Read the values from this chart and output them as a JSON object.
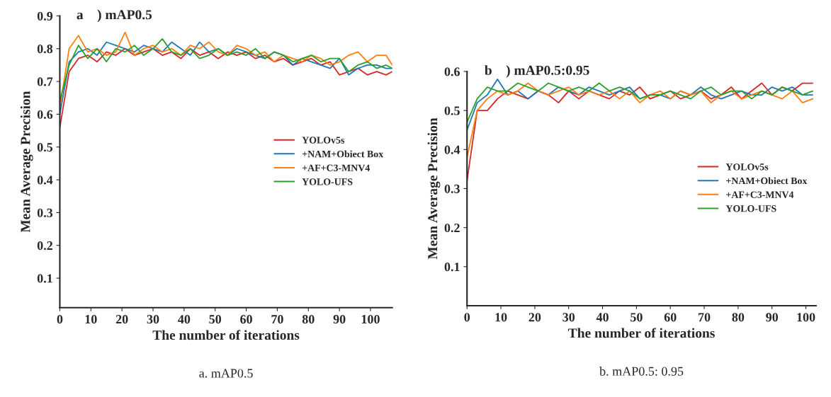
{
  "chart_data": [
    {
      "type": "line",
      "title": "a ) mAP0.5",
      "xlabel": "The number of iterations",
      "ylabel": "Mean Average Precision",
      "annotations": [
        "a. mAP0.5"
      ],
      "x": [
        0,
        3,
        6,
        9,
        12,
        15,
        18,
        21,
        24,
        27,
        30,
        33,
        36,
        39,
        42,
        45,
        48,
        51,
        54,
        57,
        60,
        63,
        66,
        69,
        72,
        75,
        78,
        81,
        84,
        87,
        90,
        93,
        96,
        99,
        102,
        105,
        107
      ],
      "xlim": [
        0,
        107
      ],
      "xticks": [
        0,
        10,
        20,
        30,
        40,
        50,
        60,
        70,
        80,
        90,
        100
      ],
      "ylim": [
        0.01,
        0.9
      ],
      "yticks": [
        0.1,
        0.2,
        0.3,
        0.4,
        0.5,
        0.6,
        0.7,
        0.8,
        0.9
      ],
      "legend": "center right",
      "grid": false,
      "series": [
        {
          "name": "YOLOv5s",
          "color": "#d62728",
          "values": [
            0.56,
            0.73,
            0.77,
            0.78,
            0.76,
            0.79,
            0.78,
            0.8,
            0.78,
            0.79,
            0.8,
            0.78,
            0.79,
            0.77,
            0.8,
            0.78,
            0.79,
            0.77,
            0.79,
            0.78,
            0.79,
            0.77,
            0.78,
            0.76,
            0.77,
            0.75,
            0.76,
            0.77,
            0.75,
            0.76,
            0.72,
            0.73,
            0.74,
            0.72,
            0.73,
            0.72,
            0.73
          ]
        },
        {
          "name": "+NAM+Obiect Box",
          "color": "#1f77b4",
          "values": [
            0.6,
            0.76,
            0.79,
            0.8,
            0.78,
            0.82,
            0.81,
            0.8,
            0.79,
            0.81,
            0.8,
            0.79,
            0.82,
            0.8,
            0.78,
            0.82,
            0.79,
            0.8,
            0.78,
            0.8,
            0.79,
            0.78,
            0.77,
            0.79,
            0.78,
            0.75,
            0.77,
            0.76,
            0.75,
            0.74,
            0.77,
            0.72,
            0.74,
            0.75,
            0.75,
            0.74,
            0.74
          ]
        },
        {
          "name": "+AF+C3-MNV4",
          "color": "#ff7f0e",
          "values": [
            0.62,
            0.8,
            0.84,
            0.79,
            0.8,
            0.78,
            0.79,
            0.85,
            0.78,
            0.8,
            0.81,
            0.79,
            0.8,
            0.78,
            0.81,
            0.8,
            0.82,
            0.79,
            0.78,
            0.81,
            0.8,
            0.78,
            0.79,
            0.76,
            0.78,
            0.77,
            0.76,
            0.78,
            0.77,
            0.75,
            0.76,
            0.78,
            0.79,
            0.76,
            0.78,
            0.78,
            0.75
          ]
        },
        {
          "name": "YOLO-UFS",
          "color": "#2ca02c",
          "values": [
            0.64,
            0.75,
            0.81,
            0.77,
            0.8,
            0.76,
            0.8,
            0.79,
            0.81,
            0.78,
            0.8,
            0.83,
            0.79,
            0.78,
            0.8,
            0.77,
            0.78,
            0.8,
            0.78,
            0.79,
            0.78,
            0.8,
            0.77,
            0.79,
            0.78,
            0.76,
            0.77,
            0.78,
            0.76,
            0.77,
            0.77,
            0.73,
            0.75,
            0.76,
            0.74,
            0.75,
            0.74
          ]
        }
      ]
    },
    {
      "type": "line",
      "title": "b ) mAP0.5:0.95",
      "xlabel": "The number of iterations",
      "ylabel": "Mean Average Precision",
      "annotations": [
        "b. mAP0.5: 0.95"
      ],
      "x": [
        0,
        3,
        6,
        9,
        12,
        15,
        18,
        21,
        24,
        27,
        30,
        33,
        36,
        39,
        42,
        45,
        48,
        51,
        54,
        57,
        60,
        63,
        66,
        69,
        72,
        75,
        78,
        81,
        84,
        87,
        90,
        93,
        96,
        99,
        102
      ],
      "xlim": [
        0,
        103
      ],
      "xticks": [
        0,
        10,
        20,
        30,
        40,
        50,
        60,
        70,
        80,
        90,
        100
      ],
      "ylim": [
        0,
        0.6
      ],
      "yticks": [
        0.1,
        0.2,
        0.3,
        0.4,
        0.5,
        0.6
      ],
      "legend": "right",
      "grid": false,
      "series": [
        {
          "name": "YOLOv5s",
          "color": "#d62728",
          "values": [
            0.32,
            0.5,
            0.5,
            0.53,
            0.55,
            0.54,
            0.53,
            0.55,
            0.54,
            0.52,
            0.55,
            0.53,
            0.55,
            0.54,
            0.53,
            0.55,
            0.54,
            0.56,
            0.53,
            0.54,
            0.55,
            0.53,
            0.54,
            0.55,
            0.53,
            0.54,
            0.56,
            0.53,
            0.55,
            0.57,
            0.54,
            0.56,
            0.55,
            0.57,
            0.57
          ]
        },
        {
          "name": "+NAM+Obiect Box",
          "color": "#1f77b4",
          "values": [
            0.45,
            0.52,
            0.54,
            0.58,
            0.54,
            0.55,
            0.53,
            0.55,
            0.54,
            0.56,
            0.55,
            0.54,
            0.56,
            0.55,
            0.54,
            0.55,
            0.56,
            0.53,
            0.54,
            0.54,
            0.53,
            0.55,
            0.54,
            0.56,
            0.54,
            0.53,
            0.54,
            0.55,
            0.54,
            0.54,
            0.56,
            0.55,
            0.56,
            0.54,
            0.54
          ]
        },
        {
          "name": "+AF+C3-MNV4",
          "color": "#ff7f0e",
          "values": [
            0.38,
            0.5,
            0.53,
            0.55,
            0.54,
            0.55,
            0.57,
            0.55,
            0.54,
            0.55,
            0.56,
            0.54,
            0.55,
            0.54,
            0.55,
            0.53,
            0.55,
            0.52,
            0.54,
            0.55,
            0.53,
            0.55,
            0.54,
            0.55,
            0.52,
            0.54,
            0.55,
            0.53,
            0.54,
            0.55,
            0.54,
            0.53,
            0.55,
            0.52,
            0.53
          ]
        },
        {
          "name": "YOLO-UFS",
          "color": "#2ca02c",
          "values": [
            0.47,
            0.53,
            0.56,
            0.55,
            0.55,
            0.57,
            0.56,
            0.55,
            0.57,
            0.56,
            0.55,
            0.56,
            0.55,
            0.57,
            0.55,
            0.56,
            0.55,
            0.53,
            0.54,
            0.54,
            0.55,
            0.54,
            0.53,
            0.55,
            0.56,
            0.54,
            0.55,
            0.55,
            0.53,
            0.55,
            0.54,
            0.56,
            0.55,
            0.54,
            0.55
          ]
        }
      ]
    }
  ]
}
